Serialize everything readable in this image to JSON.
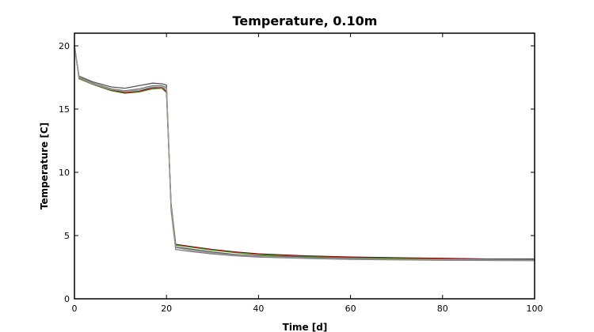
{
  "chart_data": {
    "type": "line",
    "title": "Temperature, 0.10m",
    "xlabel": "Time [d]",
    "ylabel": "Temperature [C]",
    "xlim": [
      0,
      100
    ],
    "ylim": [
      0,
      21
    ],
    "xticks": [
      0,
      20,
      40,
      60,
      80,
      100
    ],
    "yticks": [
      0,
      5,
      10,
      15,
      20
    ],
    "grid": false,
    "legend": "none",
    "series": [
      {
        "color": "#8b0000",
        "x": [
          0,
          1,
          4,
          8,
          11,
          14,
          17,
          19,
          20,
          21,
          22,
          25,
          30,
          35,
          40,
          50,
          60,
          70,
          80,
          90,
          100
        ],
        "y": [
          20,
          17.5,
          17.0,
          16.5,
          16.3,
          16.4,
          16.7,
          16.7,
          16.4,
          7.5,
          4.3,
          4.15,
          3.9,
          3.7,
          3.55,
          3.4,
          3.3,
          3.25,
          3.2,
          3.15,
          3.15
        ]
      },
      {
        "color": "#4b7a1e",
        "x": [
          0,
          1,
          4,
          8,
          11,
          14,
          17,
          19,
          20,
          21,
          22,
          25,
          30,
          35,
          40,
          50,
          60,
          70,
          80,
          90,
          100
        ],
        "y": [
          20,
          17.4,
          16.95,
          16.45,
          16.25,
          16.35,
          16.6,
          16.65,
          16.3,
          7.4,
          4.25,
          4.1,
          3.85,
          3.65,
          3.5,
          3.35,
          3.25,
          3.2,
          3.15,
          3.12,
          3.1
        ]
      },
      {
        "color": "#555555",
        "x": [
          0,
          1,
          4,
          8,
          11,
          14,
          17,
          19,
          20,
          21,
          22,
          25,
          30,
          35,
          40,
          50,
          60,
          70,
          80,
          90,
          100
        ],
        "y": [
          20,
          17.6,
          17.15,
          16.75,
          16.65,
          16.85,
          17.05,
          17.0,
          16.9,
          7.2,
          4.1,
          3.95,
          3.7,
          3.5,
          3.4,
          3.3,
          3.2,
          3.15,
          3.12,
          3.1,
          3.1
        ]
      },
      {
        "color": "#777777",
        "x": [
          0,
          1,
          4,
          8,
          11,
          14,
          17,
          19,
          20,
          21,
          22,
          25,
          30,
          35,
          40,
          50,
          60,
          70,
          80,
          90,
          100
        ],
        "y": [
          20,
          17.55,
          17.05,
          16.6,
          16.45,
          16.6,
          16.85,
          16.85,
          16.7,
          7.0,
          3.9,
          3.75,
          3.55,
          3.4,
          3.3,
          3.2,
          3.12,
          3.08,
          3.05,
          3.03,
          3.02
        ]
      },
      {
        "color": "#999999",
        "x": [
          0,
          1,
          4,
          8,
          11,
          14,
          17,
          19,
          20,
          21,
          22,
          25,
          30,
          35,
          40,
          50,
          60,
          70,
          80,
          90,
          100
        ],
        "y": [
          20,
          17.5,
          17.0,
          16.55,
          16.4,
          16.5,
          16.75,
          16.75,
          16.6,
          7.3,
          4.05,
          3.85,
          3.6,
          3.45,
          3.35,
          3.25,
          3.18,
          3.12,
          3.1,
          3.08,
          3.06
        ]
      }
    ]
  }
}
